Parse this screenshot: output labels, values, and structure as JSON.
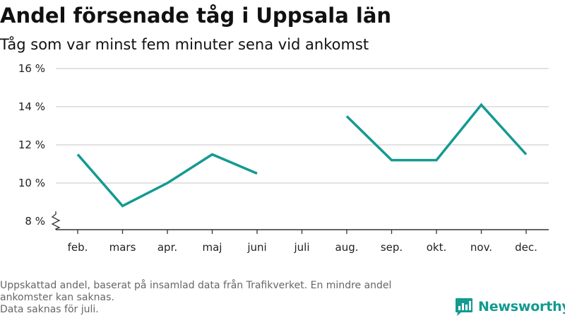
{
  "header": {
    "title": "Andel försenade tåg i Uppsala län",
    "subtitle": "Tåg som var minst fem minuter sena vid ankomst"
  },
  "chart_data": {
    "type": "line",
    "title": "Andel försenade tåg i Uppsala län",
    "subtitle": "Tåg som var minst fem minuter sena vid ankomst",
    "categories": [
      "feb.",
      "mars",
      "apr.",
      "maj",
      "juni",
      "juli",
      "aug.",
      "sep.",
      "okt.",
      "nov.",
      "dec."
    ],
    "series": [
      {
        "values": [
          11.5,
          8.8,
          10.0,
          11.5,
          10.5,
          null,
          13.5,
          11.2,
          11.2,
          14.1,
          11.5
        ],
        "color": "#139a91"
      }
    ],
    "y_ticks": [
      8,
      10,
      12,
      14,
      16
    ],
    "y_tick_labels": [
      "8 %",
      "10 %",
      "12 %",
      "14 %",
      "16 %"
    ],
    "ylim": [
      8,
      16
    ],
    "y_axis_break": true,
    "grid": true,
    "xlabel": "",
    "ylabel": ""
  },
  "footnote": {
    "line1": "Uppskattad andel, baserat på insamlad data från Trafikverket. En mindre andel ankomster kan saknas.",
    "line2": "Data saknas för juli."
  },
  "logo": {
    "name": "Newsworthy",
    "color": "#139a91",
    "icon": "newsworthy-logo-icon"
  }
}
